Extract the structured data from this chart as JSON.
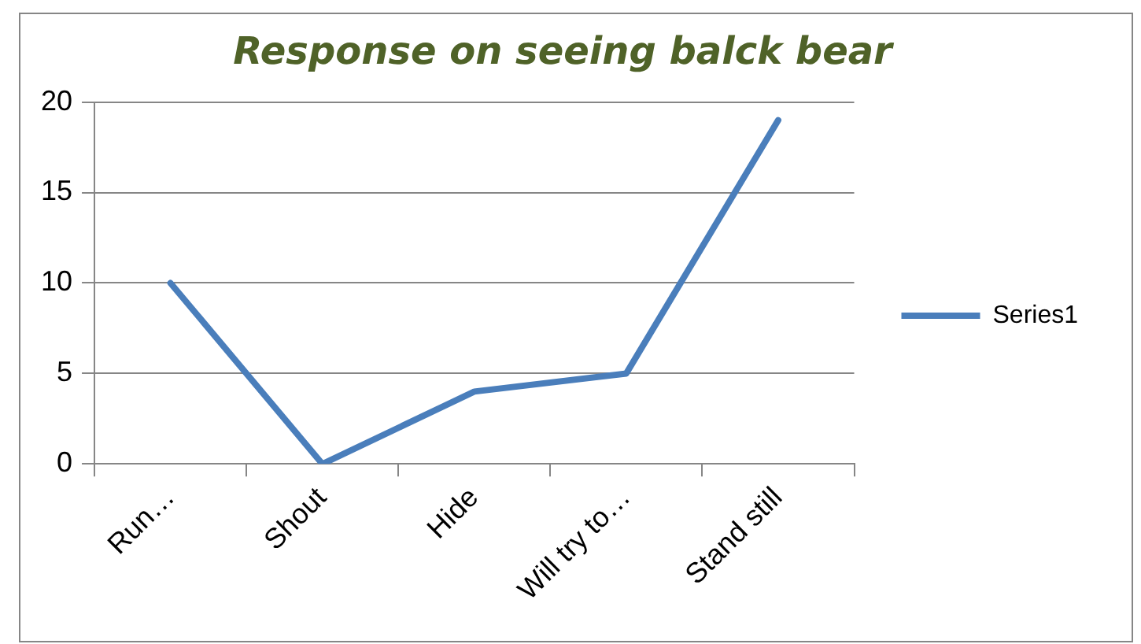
{
  "chart_data": {
    "type": "line",
    "title": "Response on seeing balck bear",
    "categories": [
      "Run…",
      "Shout",
      "Hide",
      "Will try to…",
      "Stand still"
    ],
    "series": [
      {
        "name": "Series1",
        "color": "#4a7ebb",
        "values": [
          10,
          0,
          4,
          5,
          19
        ]
      }
    ],
    "ylim": [
      0,
      20
    ],
    "yticks": [
      0,
      5,
      10,
      15,
      20
    ],
    "grid": "y",
    "legend": "right",
    "marker": "none",
    "line_style": "solid"
  }
}
